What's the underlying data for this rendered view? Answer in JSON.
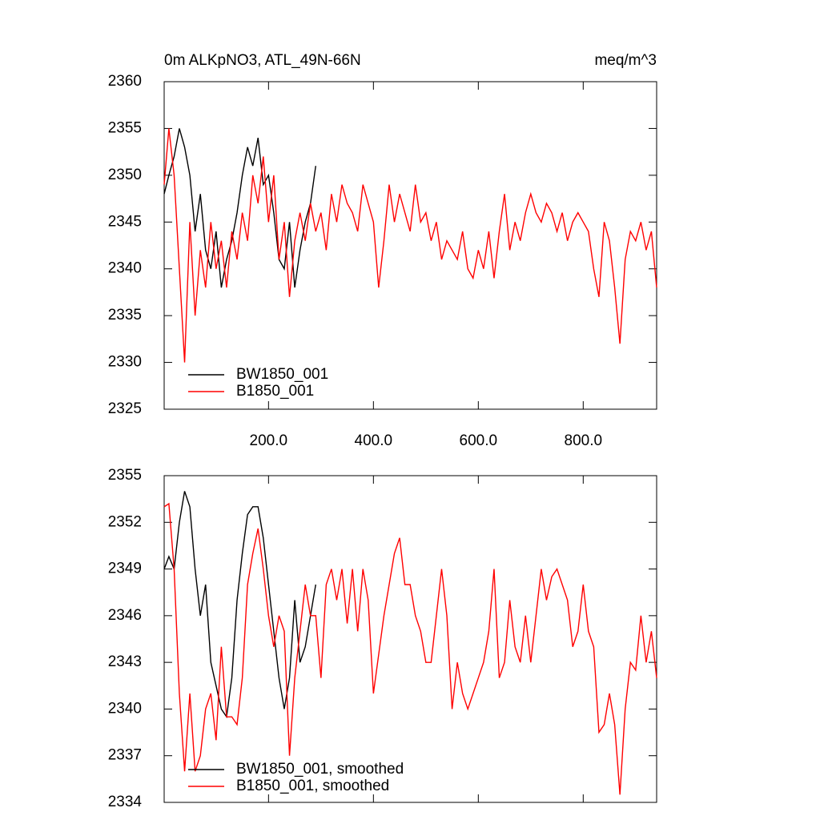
{
  "chart_data": [
    {
      "type": "line",
      "title": "0m ALKpNO3, ATL_49N-66N",
      "units": "meq/m^3",
      "xlim": [
        1,
        940
      ],
      "ylim": [
        2325,
        2360
      ],
      "xticks": [
        {
          "value": 200,
          "label": "200.0"
        },
        {
          "value": 400,
          "label": "400.0"
        },
        {
          "value": 600,
          "label": "600.0"
        },
        {
          "value": 800,
          "label": "800.0"
        }
      ],
      "yticks": [
        2325,
        2330,
        2335,
        2340,
        2345,
        2350,
        2355,
        2360
      ],
      "series": [
        {
          "name": "BW1850_001",
          "color": "#000000",
          "x": [
            1,
            10,
            20,
            30,
            40,
            50,
            60,
            70,
            80,
            90,
            100,
            110,
            120,
            130,
            140,
            150,
            160,
            170,
            180,
            190,
            200,
            210,
            220,
            230,
            240,
            250,
            260,
            270,
            280,
            290
          ],
          "values": [
            2348,
            2350,
            2352,
            2355,
            2353,
            2350,
            2344,
            2348,
            2342,
            2340,
            2344,
            2338,
            2341,
            2343,
            2346,
            2350,
            2353,
            2351,
            2354,
            2349,
            2350,
            2346,
            2341,
            2340,
            2345,
            2338,
            2342,
            2345,
            2347,
            2351
          ]
        },
        {
          "name": "B1850_001",
          "color": "#ff0000",
          "x": [
            1,
            10,
            20,
            30,
            40,
            50,
            60,
            70,
            80,
            90,
            100,
            110,
            120,
            130,
            140,
            150,
            160,
            170,
            180,
            190,
            200,
            210,
            220,
            230,
            240,
            250,
            260,
            270,
            280,
            290,
            300,
            310,
            320,
            330,
            340,
            350,
            360,
            370,
            380,
            390,
            400,
            410,
            420,
            430,
            440,
            450,
            460,
            470,
            480,
            490,
            500,
            510,
            520,
            530,
            540,
            550,
            560,
            570,
            580,
            590,
            600,
            610,
            620,
            630,
            640,
            650,
            660,
            670,
            680,
            690,
            700,
            710,
            720,
            730,
            740,
            750,
            760,
            770,
            780,
            790,
            800,
            810,
            820,
            830,
            840,
            850,
            860,
            870,
            880,
            890,
            900,
            910,
            920,
            930,
            940
          ],
          "values": [
            2349,
            2355,
            2350,
            2340,
            2330,
            2345,
            2335,
            2342,
            2338,
            2345,
            2340,
            2343,
            2338,
            2344,
            2341,
            2346,
            2343,
            2350,
            2347,
            2352,
            2345,
            2350,
            2341,
            2345,
            2337,
            2343,
            2346,
            2343,
            2347,
            2344,
            2346,
            2342,
            2348,
            2345,
            2349,
            2347,
            2346,
            2344,
            2349,
            2347,
            2345,
            2338,
            2343,
            2349,
            2345,
            2348,
            2346,
            2344,
            2349,
            2345,
            2346,
            2343,
            2345,
            2341,
            2343,
            2342,
            2341,
            2344,
            2340,
            2339,
            2342,
            2340,
            2344,
            2339,
            2344,
            2348,
            2342,
            2345,
            2343,
            2346,
            2348,
            2346,
            2345,
            2347,
            2346,
            2344,
            2346,
            2343,
            2345,
            2346,
            2345,
            2344,
            2340,
            2337,
            2345,
            2343,
            2338,
            2332,
            2341,
            2344,
            2343,
            2345,
            2342,
            2344,
            2338
          ]
        }
      ]
    },
    {
      "type": "line",
      "xlim": [
        1,
        940
      ],
      "ylim": [
        2334,
        2355
      ],
      "yticks": [
        2334,
        2337,
        2340,
        2343,
        2346,
        2349,
        2352,
        2355
      ],
      "series": [
        {
          "name": "BW1850_001, smoothed",
          "color": "#000000",
          "x": [
            1,
            10,
            20,
            30,
            40,
            50,
            60,
            70,
            80,
            90,
            100,
            110,
            120,
            130,
            140,
            150,
            160,
            170,
            180,
            190,
            200,
            210,
            220,
            230,
            240,
            250,
            260,
            270,
            280,
            290
          ],
          "values": [
            2349,
            2349.8,
            2349,
            2352,
            2354,
            2353,
            2349,
            2346,
            2348,
            2343,
            2341.5,
            2340,
            2339.5,
            2342,
            2347,
            2350,
            2352.5,
            2353,
            2353,
            2351,
            2348,
            2345,
            2342,
            2340,
            2342,
            2347,
            2343,
            2344,
            2346,
            2348
          ]
        },
        {
          "name": "B1850_001, smoothed",
          "color": "#ff0000",
          "x": [
            1,
            10,
            20,
            30,
            40,
            50,
            60,
            70,
            80,
            90,
            100,
            110,
            120,
            130,
            140,
            150,
            160,
            170,
            180,
            190,
            200,
            210,
            220,
            230,
            240,
            250,
            260,
            270,
            280,
            290,
            300,
            310,
            320,
            330,
            340,
            350,
            360,
            370,
            380,
            390,
            400,
            410,
            420,
            430,
            440,
            450,
            460,
            470,
            480,
            490,
            500,
            510,
            520,
            530,
            540,
            550,
            560,
            570,
            580,
            590,
            600,
            610,
            620,
            630,
            640,
            650,
            660,
            670,
            680,
            690,
            700,
            710,
            720,
            730,
            740,
            750,
            760,
            770,
            780,
            790,
            800,
            810,
            820,
            830,
            840,
            850,
            860,
            870,
            880,
            890,
            900,
            910,
            920,
            930,
            940
          ],
          "values": [
            2353,
            2353.2,
            2349,
            2341,
            2336,
            2341,
            2336,
            2337,
            2340,
            2341,
            2338,
            2344,
            2339.5,
            2339.5,
            2339,
            2342,
            2348,
            2350,
            2351.6,
            2349,
            2346,
            2344,
            2346,
            2345,
            2337,
            2342,
            2345,
            2348,
            2346,
            2346,
            2342,
            2348,
            2349,
            2347,
            2349,
            2345.5,
            2349,
            2345,
            2349,
            2347,
            2341,
            2343.5,
            2346,
            2348,
            2350,
            2351,
            2348,
            2348,
            2346,
            2345,
            2343,
            2343,
            2346,
            2349,
            2346,
            2340,
            2343,
            2341,
            2340,
            2341,
            2342,
            2343,
            2345,
            2349,
            2342,
            2343,
            2347,
            2344,
            2343,
            2346,
            2343,
            2346,
            2349,
            2347,
            2348.5,
            2349,
            2348,
            2347,
            2344,
            2345,
            2348,
            2345,
            2344,
            2338.5,
            2339,
            2341,
            2339,
            2334.5,
            2340,
            2343,
            2342.5,
            2346,
            2343,
            2345,
            2342
          ]
        }
      ]
    }
  ]
}
